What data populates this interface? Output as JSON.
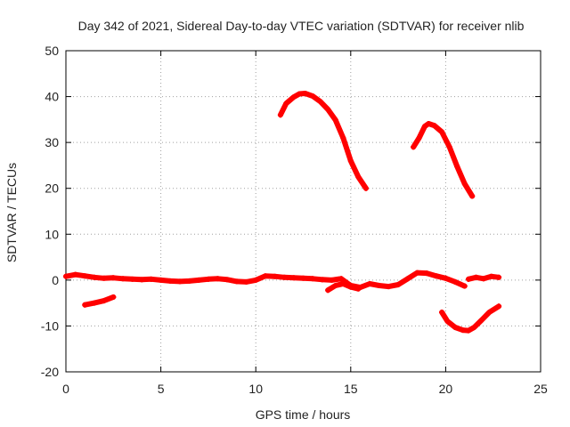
{
  "chart_data": {
    "type": "scatter",
    "title": "Day 342 of 2021, Sidereal Day-to-day VTEC variation (SDTVAR) for receiver nlib",
    "xlabel": "GPS time / hours",
    "ylabel": "SDTVAR / TECUs",
    "xlim": [
      0,
      25
    ],
    "ylim": [
      -20,
      50
    ],
    "xticks": [
      0,
      5,
      10,
      15,
      20,
      25
    ],
    "yticks": [
      -20,
      -10,
      0,
      10,
      20,
      30,
      40,
      50
    ],
    "xtick_labels": [
      "0",
      "5",
      "10",
      "15",
      "20",
      "25"
    ],
    "ytick_labels": [
      "-20",
      "-10",
      "0",
      "10",
      "20",
      "30",
      "40",
      "50"
    ],
    "grid": true,
    "marker_color": "#ff0000",
    "series": [
      {
        "name": "baseline-segment",
        "x": [
          0.0,
          0.5,
          1.0,
          1.5,
          2.0,
          2.5,
          3.0,
          3.5,
          4.0,
          4.5,
          5.0,
          5.5,
          6.0,
          6.5,
          7.0,
          7.5,
          8.0,
          8.5,
          9.0,
          9.5,
          10.0,
          10.5,
          11.0,
          11.5,
          12.0,
          12.5,
          13.0,
          13.5,
          14.0,
          14.5,
          15.0,
          15.5,
          16.0,
          16.5,
          17.0,
          17.5,
          18.0,
          18.5,
          19.0,
          19.5,
          20.0,
          20.5,
          21.0
        ],
        "y": [
          0.8,
          1.2,
          0.9,
          0.6,
          0.4,
          0.5,
          0.3,
          0.2,
          0.1,
          0.2,
          0.0,
          -0.2,
          -0.3,
          -0.2,
          0.0,
          0.2,
          0.3,
          0.1,
          -0.3,
          -0.4,
          0.0,
          0.9,
          0.8,
          0.6,
          0.5,
          0.4,
          0.3,
          0.1,
          0.0,
          0.3,
          -1.2,
          -1.6,
          -0.8,
          -1.2,
          -1.4,
          -1.0,
          0.3,
          1.6,
          1.5,
          0.9,
          0.4,
          -0.4,
          -1.3
        ]
      },
      {
        "name": "low-segment",
        "x": [
          1.0,
          1.5,
          2.0,
          2.5
        ],
        "y": [
          -5.4,
          -5.0,
          -4.5,
          -3.7
        ]
      },
      {
        "name": "dip-segment",
        "x": [
          13.8,
          14.2,
          14.6,
          15.0,
          15.4
        ],
        "y": [
          -2.2,
          -1.2,
          -0.8,
          -1.5,
          -1.9
        ]
      },
      {
        "name": "high-arc-1",
        "x": [
          11.3,
          11.6,
          12.0,
          12.3,
          12.6,
          13.0,
          13.4,
          13.8,
          14.2,
          14.6,
          15.0,
          15.4,
          15.8
        ],
        "y": [
          36.0,
          38.5,
          39.9,
          40.6,
          40.7,
          40.1,
          38.9,
          37.2,
          34.9,
          31.0,
          26.0,
          22.5,
          20.0
        ]
      },
      {
        "name": "high-arc-2",
        "x": [
          18.3,
          18.6,
          18.9,
          19.1,
          19.4,
          19.8,
          20.2,
          20.6,
          21.0,
          21.4
        ],
        "y": [
          29.0,
          31.0,
          33.5,
          34.1,
          33.7,
          32.3,
          29.0,
          24.8,
          21.0,
          18.3
        ]
      },
      {
        "name": "negative-arc",
        "x": [
          19.8,
          20.1,
          20.5,
          20.9,
          21.2,
          21.5,
          21.9,
          22.3,
          22.8
        ],
        "y": [
          -7.0,
          -9.0,
          -10.3,
          -10.9,
          -11.0,
          -10.3,
          -8.7,
          -7.0,
          -5.7
        ]
      },
      {
        "name": "late-baseline",
        "x": [
          21.2,
          21.6,
          22.0,
          22.4,
          22.8
        ],
        "y": [
          0.2,
          0.6,
          0.3,
          0.8,
          0.6
        ]
      }
    ]
  }
}
